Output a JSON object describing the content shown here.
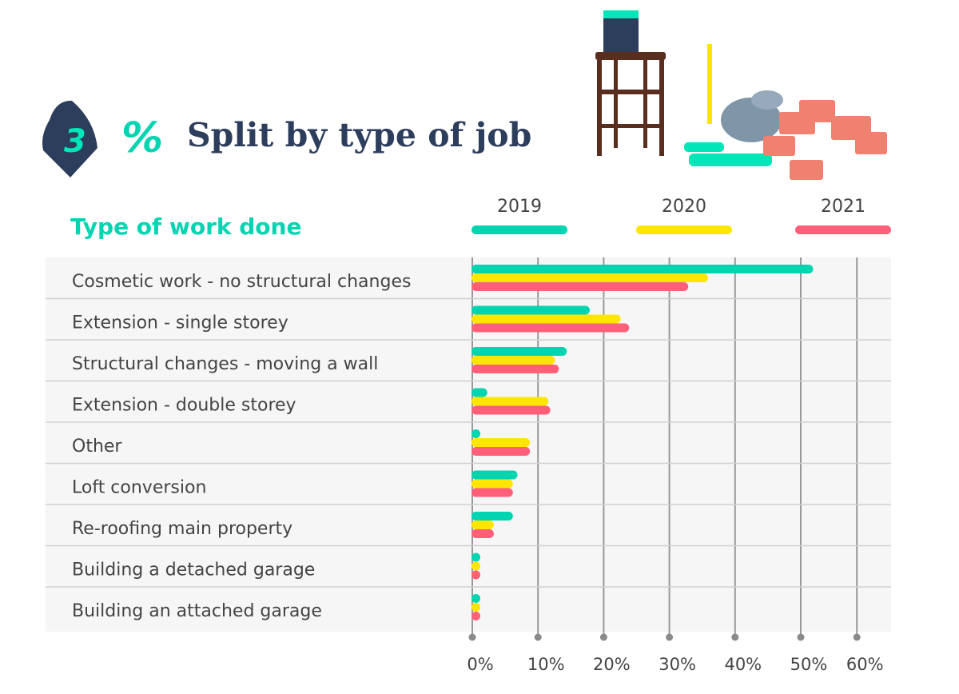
{
  "header": {
    "section_number": "3",
    "title": "Split by type of job",
    "percent_symbol": "%"
  },
  "colors": {
    "navy": "#2d3d5c",
    "teal": "#00d4b0",
    "yellow": "#ffe600",
    "pink": "#ff5f78",
    "panel": "#f6f6f6"
  },
  "chart_data": {
    "type": "bar",
    "orientation": "horizontal",
    "title": "Type of work done",
    "categories": [
      "Cosmetic work  - no structural changes",
      "Extension - single storey",
      "Structural changes  -  moving a wall",
      "Extension -  double storey",
      "Other",
      "Loft conversion",
      "Re-roofing main property",
      "Building a detached garage",
      "Building an attached garage"
    ],
    "series": [
      {
        "name": "2019",
        "color": "#00d4b0",
        "values": [
          52,
          18,
          14.5,
          2.4,
          1.2,
          7,
          6.3,
          1,
          1
        ]
      },
      {
        "name": "2020",
        "color": "#ffe600",
        "values": [
          36,
          22.7,
          12.7,
          11.7,
          8.9,
          6.3,
          3.4,
          1,
          1
        ]
      },
      {
        "name": "2021",
        "color": "#ff5f78",
        "values": [
          33,
          24,
          13.3,
          12,
          8.9,
          6.3,
          3.4,
          1,
          1
        ]
      }
    ],
    "xlim": [
      0,
      60
    ],
    "xticks": [
      0,
      10,
      20,
      30,
      40,
      50,
      60
    ],
    "xtick_labels": [
      "0%",
      "10%",
      "20%",
      "30%",
      "40%",
      "50%",
      "60%"
    ],
    "grid": true,
    "legend_position": "top"
  }
}
